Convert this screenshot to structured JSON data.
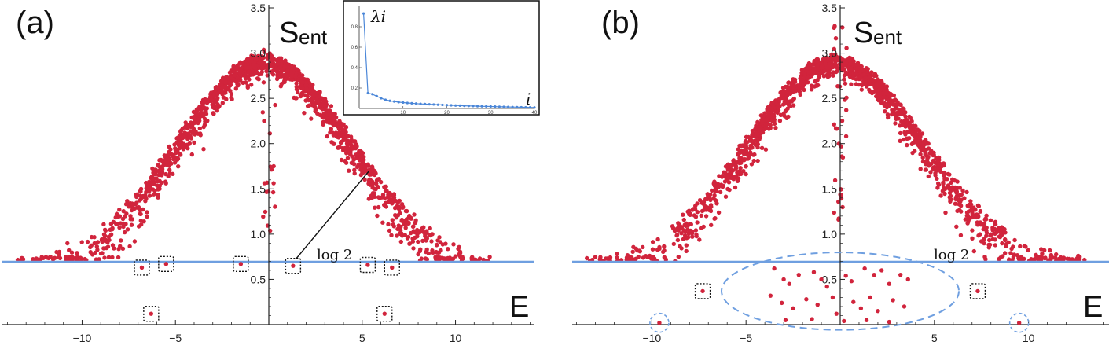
{
  "chart_data": [
    {
      "type": "scatter",
      "panel_label": "(a)",
      "ylabel_main": "S",
      "ylabel_sub": "ent",
      "xlabel": "E",
      "reference_line": {
        "label": "log 2",
        "value": 0.693,
        "color": "#6f9fe0"
      },
      "xlim": [
        -14.5,
        14.0
      ],
      "ylim": [
        0,
        3.5
      ],
      "x_ticks": [
        -10,
        -5,
        5,
        10
      ],
      "y_ticks": [
        0.5,
        1.0,
        1.5,
        2.0,
        2.5,
        3.0,
        3.5
      ],
      "x_tick_labels": [
        "−10",
        "−5",
        "5",
        "10"
      ],
      "y_tick_labels": [
        "0.5",
        "1.0",
        "1.5",
        "2.0",
        "2.5",
        "3.0",
        "3.5"
      ],
      "point_color": "#d1243c",
      "bulk_distribution": {
        "count": 1500,
        "energy_range": [
          -13.5,
          13.0
        ],
        "peak_entropy": 3.0
      },
      "highlighted_points": [
        {
          "x": -6.8,
          "y": 0.63,
          "marker": "dotted-square"
        },
        {
          "x": -5.5,
          "y": 0.67,
          "marker": "dotted-square"
        },
        {
          "x": -1.5,
          "y": 0.67,
          "marker": "dotted-square"
        },
        {
          "x": 1.3,
          "y": 0.65,
          "marker": "dotted-square"
        },
        {
          "x": 5.3,
          "y": 0.66,
          "marker": "dotted-square"
        },
        {
          "x": 6.6,
          "y": 0.63,
          "marker": "dotted-square"
        },
        {
          "x": -6.3,
          "y": 0.12,
          "marker": "dotted-square"
        },
        {
          "x": 6.2,
          "y": 0.12,
          "marker": "dotted-square"
        }
      ],
      "inset": {
        "type": "line",
        "xlabel": "i",
        "ylabel": "λi",
        "x_ticks": [
          10,
          20,
          30,
          40
        ],
        "y_ticks": [
          0.2,
          0.4,
          0.6,
          0.8
        ],
        "x_tick_labels": [
          "10",
          "20",
          "30",
          "40"
        ],
        "y_tick_labels": [
          "0.2",
          "0.4",
          "0.6",
          "0.8"
        ],
        "xlim": [
          0,
          40
        ],
        "ylim": [
          0,
          1.0
        ],
        "x": [
          1,
          2,
          3,
          4,
          5,
          6,
          7,
          8,
          9,
          10,
          11,
          12,
          13,
          14,
          15,
          16,
          17,
          18,
          19,
          20,
          21,
          22,
          23,
          24,
          25,
          26,
          27,
          28,
          29,
          30,
          31,
          32,
          33,
          34,
          35,
          36,
          37,
          38,
          39,
          40
        ],
        "values": [
          0.93,
          0.15,
          0.14,
          0.12,
          0.1,
          0.085,
          0.075,
          0.068,
          0.062,
          0.058,
          0.054,
          0.051,
          0.048,
          0.045,
          0.043,
          0.041,
          0.039,
          0.037,
          0.035,
          0.033,
          0.031,
          0.029,
          0.028,
          0.026,
          0.025,
          0.024,
          0.022,
          0.021,
          0.02,
          0.019,
          0.018,
          0.017,
          0.016,
          0.015,
          0.014,
          0.013,
          0.012,
          0.011,
          0.01,
          0.009
        ],
        "color": "#4a86d8"
      }
    },
    {
      "type": "scatter",
      "panel_label": "(b)",
      "ylabel_main": "S",
      "ylabel_sub": "ent",
      "xlabel": "E",
      "reference_line": {
        "label": "log 2",
        "value": 0.693,
        "color": "#6f9fe0"
      },
      "xlim": [
        -14.5,
        14.0
      ],
      "ylim": [
        0,
        3.5
      ],
      "x_ticks": [
        -10,
        -5,
        5,
        10
      ],
      "y_ticks": [
        0.5,
        1.0,
        1.5,
        2.0,
        2.5,
        3.0,
        3.5
      ],
      "x_tick_labels": [
        "−10",
        "−5",
        "5",
        "10"
      ],
      "y_tick_labels": [
        "0.5",
        "1.0",
        "1.5",
        "2.0",
        "2.5",
        "3.0",
        "3.5"
      ],
      "point_color": "#d1243c",
      "bulk_distribution": {
        "count": 1500,
        "energy_range": [
          -13.5,
          13.0
        ],
        "peak_entropy": 3.0
      },
      "highlighted_points": [
        {
          "x": -7.3,
          "y": 0.37,
          "marker": "dotted-square"
        },
        {
          "x": 7.3,
          "y": 0.37,
          "marker": "dotted-square"
        },
        {
          "x": -9.6,
          "y": 0.02,
          "marker": "dashed-circle"
        },
        {
          "x": 9.5,
          "y": 0.02,
          "marker": "dashed-circle"
        }
      ],
      "low_entropy_cluster": {
        "marker": "dashed-ellipse",
        "center": [
          0,
          0.37
        ],
        "x_halfwidth": 6.3,
        "y_halfwidth": 0.4,
        "points": [
          [
            -3.5,
            0.62
          ],
          [
            -3.0,
            0.5
          ],
          [
            -2.7,
            0.45
          ],
          [
            -2.2,
            0.55
          ],
          [
            -1.4,
            0.58
          ],
          [
            -1.0,
            0.5
          ],
          [
            -0.7,
            0.42
          ],
          [
            -0.4,
            0.3
          ],
          [
            0.3,
            0.54
          ],
          [
            0.6,
            0.48
          ],
          [
            1.3,
            0.62
          ],
          [
            1.8,
            0.55
          ],
          [
            2.2,
            0.6
          ],
          [
            2.6,
            0.45
          ],
          [
            3.2,
            0.55
          ],
          [
            3.6,
            0.5
          ],
          [
            -3.7,
            0.32
          ],
          [
            -3.1,
            0.24
          ],
          [
            -2.5,
            0.18
          ],
          [
            -1.8,
            0.28
          ],
          [
            -1.2,
            0.22
          ],
          [
            -0.2,
            0.12
          ],
          [
            0.7,
            0.25
          ],
          [
            1.1,
            0.18
          ],
          [
            1.6,
            0.3
          ],
          [
            2.0,
            0.15
          ],
          [
            2.8,
            0.27
          ],
          [
            3.4,
            0.2
          ],
          [
            -2.9,
            0.05
          ],
          [
            -1.5,
            0.06
          ],
          [
            0.2,
            0.04
          ],
          [
            1.4,
            0.05
          ],
          [
            2.6,
            0.03
          ]
        ]
      }
    }
  ]
}
